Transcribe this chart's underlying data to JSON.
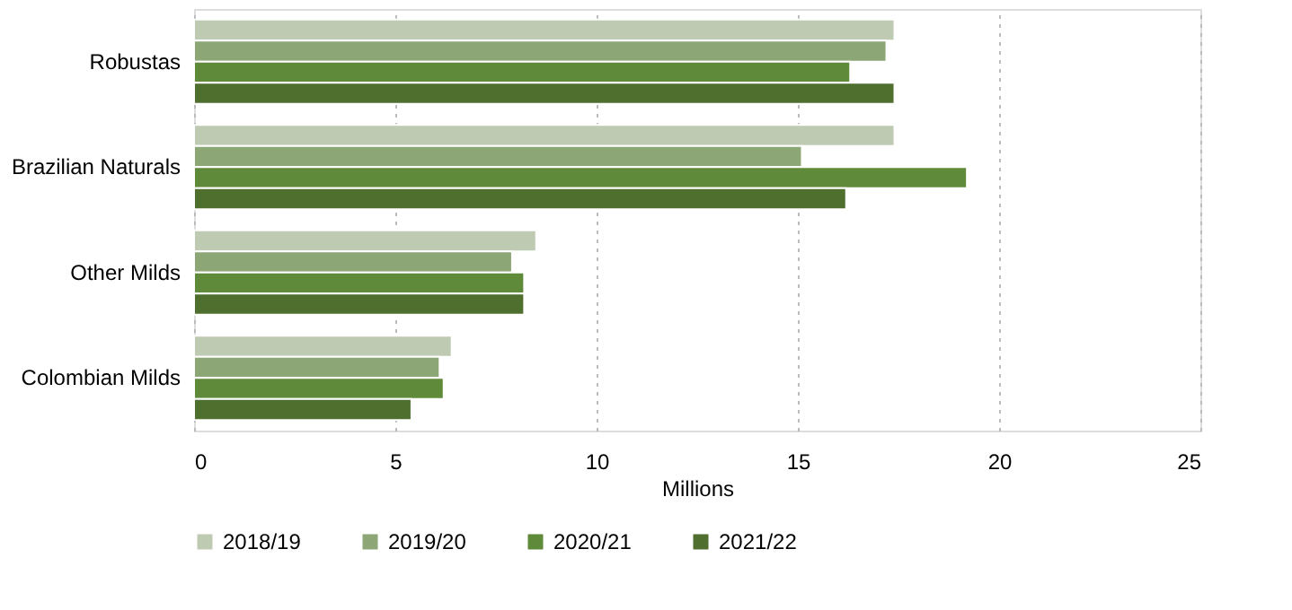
{
  "chart_data": {
    "type": "bar",
    "orientation": "horizontal",
    "xlabel": "Millions",
    "categories": [
      "Robustas",
      "Brazilian Naturals",
      "Other Milds",
      "Colombian Milds"
    ],
    "series": [
      {
        "name": "2018/19",
        "color": "#bfcab3",
        "values": [
          17.4,
          17.4,
          8.5,
          6.4
        ]
      },
      {
        "name": "2019/20",
        "color": "#8da676",
        "values": [
          17.2,
          15.1,
          7.9,
          6.1
        ]
      },
      {
        "name": "2020/21",
        "color": "#5f8a3a",
        "values": [
          16.3,
          19.2,
          8.2,
          6.2
        ]
      },
      {
        "name": "2021/22",
        "color": "#4f6f2f",
        "values": [
          17.4,
          16.2,
          8.2,
          5.4
        ]
      }
    ],
    "xlim": [
      0,
      25
    ],
    "xticks": [
      0,
      5,
      10,
      15,
      20,
      25
    ],
    "grid": "x",
    "legend": "bottom"
  }
}
